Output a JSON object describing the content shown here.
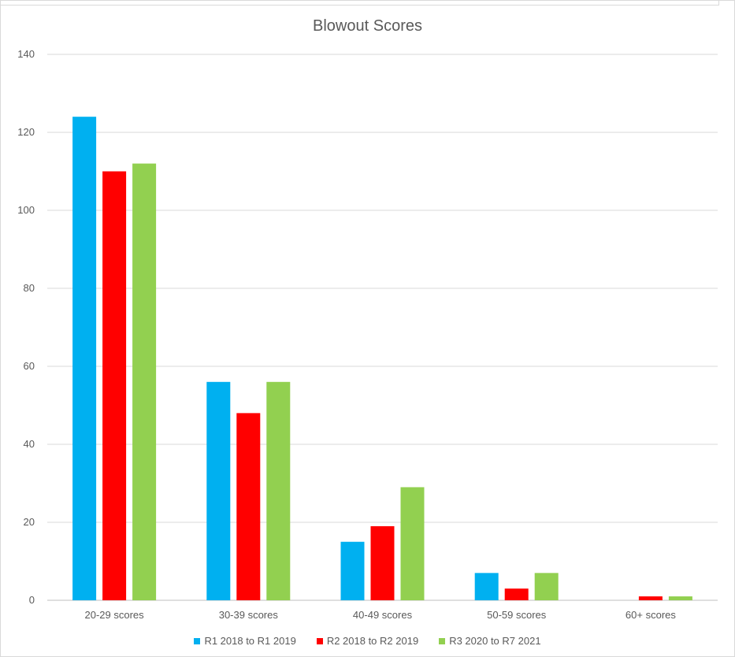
{
  "chart_data": {
    "type": "bar",
    "title": "Blowout Scores",
    "xlabel": "",
    "ylabel": "",
    "categories": [
      "20-29 scores",
      "30-39 scores",
      "40-49 scores",
      "50-59 scores",
      "60+ scores"
    ],
    "series": [
      {
        "name": "R1 2018 to R1 2019",
        "color": "#00b0f0",
        "values": [
          124,
          56,
          15,
          7,
          0
        ]
      },
      {
        "name": "R2 2018 to R2 2019",
        "color": "#ff0000",
        "values": [
          110,
          48,
          19,
          3,
          1
        ]
      },
      {
        "name": "R3 2020 to R7 2021",
        "color": "#92d050",
        "values": [
          112,
          56,
          29,
          7,
          1
        ]
      }
    ],
    "ylim": [
      0,
      140
    ],
    "yticks": [
      "0",
      "20",
      "40",
      "60",
      "80",
      "100",
      "120",
      "140"
    ],
    "grid": true,
    "legend": "bottom"
  }
}
